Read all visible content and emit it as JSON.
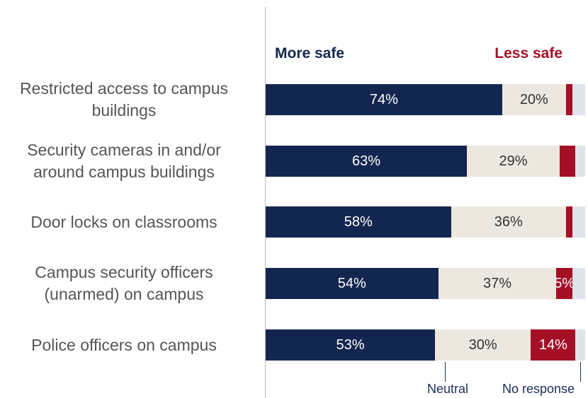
{
  "chart_data": {
    "type": "bar",
    "orientation": "horizontal",
    "stacked": true,
    "categories": [
      "Restricted access to campus buildings",
      "Security cameras in and/or around campus buildings",
      "Door locks on classrooms",
      "Campus security officers (unarmed) on campus",
      "Police officers on campus"
    ],
    "xlim": [
      0,
      100
    ],
    "series": [
      {
        "name": "More safe",
        "color": "#13264f",
        "values": [
          74,
          63,
          58,
          54,
          53
        ],
        "value_labels": [
          "74%",
          "63%",
          "58%",
          "54%",
          "53%"
        ]
      },
      {
        "name": "Neutral",
        "color": "#ede8df",
        "values": [
          20,
          29,
          36,
          37,
          30
        ],
        "value_labels": [
          "20%",
          "29%",
          "36%",
          "37%",
          "30%"
        ]
      },
      {
        "name": "Less safe",
        "color": "#a50f26",
        "values": [
          2,
          5,
          2,
          5,
          14
        ],
        "value_labels": [
          null,
          null,
          null,
          "5%",
          "14%"
        ]
      },
      {
        "name": "No response",
        "color": "#e0e3ea",
        "values": [
          4,
          3,
          4,
          4,
          3
        ]
      }
    ]
  }
}
